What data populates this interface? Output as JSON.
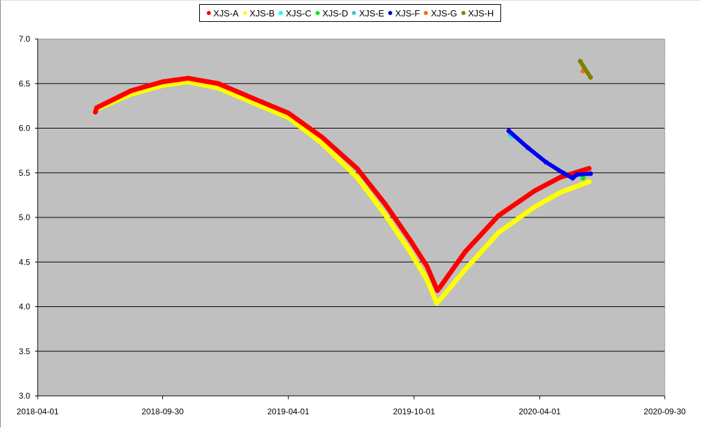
{
  "chart_data": {
    "type": "line",
    "title": "",
    "xlabel": "",
    "ylabel": "",
    "xlim": [
      "2018-04-01",
      "2020-09-30"
    ],
    "ylim": [
      3.0,
      7.0
    ],
    "x_ticks": [
      "2018-04-01",
      "2018-09-30",
      "2019-04-01",
      "2019-10-01",
      "2020-04-01",
      "2020-09-30"
    ],
    "y_ticks": [
      "3.0",
      "3.5",
      "4.0",
      "4.5",
      "5.0",
      "5.5",
      "6.0",
      "6.5",
      "7.0"
    ],
    "grid": "horizontal",
    "legend_position": "top",
    "plot_background": "#c0c0c0",
    "series": [
      {
        "name": "XJS-A",
        "color": "#ff0000",
        "points": [
          [
            "2018-06-24",
            6.18
          ],
          [
            "2018-06-26",
            6.23
          ],
          [
            "2018-08-15",
            6.42
          ],
          [
            "2018-09-30",
            6.52
          ],
          [
            "2018-11-06",
            6.56
          ],
          [
            "2018-12-20",
            6.5
          ],
          [
            "2019-02-10",
            6.33
          ],
          [
            "2019-04-01",
            6.17
          ],
          [
            "2019-05-20",
            5.9
          ],
          [
            "2019-07-10",
            5.55
          ],
          [
            "2019-08-20",
            5.15
          ],
          [
            "2019-09-25",
            4.75
          ],
          [
            "2019-10-20",
            4.45
          ],
          [
            "2019-11-04",
            4.18
          ],
          [
            "2019-11-08",
            4.22
          ],
          [
            "2019-12-15",
            4.62
          ],
          [
            "2020-02-01",
            5.02
          ],
          [
            "2020-03-25",
            5.3
          ],
          [
            "2020-05-01",
            5.45
          ],
          [
            "2020-06-12",
            5.55
          ]
        ]
      },
      {
        "name": "XJS-B",
        "color": "#ffff00",
        "points": [
          [
            "2018-06-25",
            6.21
          ],
          [
            "2018-08-15",
            6.38
          ],
          [
            "2018-09-30",
            6.48
          ],
          [
            "2018-11-06",
            6.52
          ],
          [
            "2018-12-20",
            6.45
          ],
          [
            "2019-02-10",
            6.28
          ],
          [
            "2019-04-01",
            6.12
          ],
          [
            "2019-05-20",
            5.83
          ],
          [
            "2019-07-10",
            5.45
          ],
          [
            "2019-08-20",
            5.03
          ],
          [
            "2019-09-25",
            4.62
          ],
          [
            "2019-10-20",
            4.3
          ],
          [
            "2019-11-03",
            4.04
          ],
          [
            "2019-11-08",
            4.08
          ],
          [
            "2019-12-15",
            4.42
          ],
          [
            "2020-02-01",
            4.83
          ],
          [
            "2020-03-25",
            5.12
          ],
          [
            "2020-05-01",
            5.28
          ],
          [
            "2020-06-12",
            5.4
          ]
        ]
      },
      {
        "name": "XJS-C",
        "color": "#00ffff",
        "points": [
          [
            "2020-02-20",
            5.9
          ]
        ]
      },
      {
        "name": "XJS-D",
        "color": "#00ee00",
        "points": [
          [
            "2020-06-03",
            5.44
          ]
        ]
      },
      {
        "name": "XJS-E",
        "color": "#40c8c8",
        "points": [
          [
            "2020-02-18",
            5.93
          ]
        ]
      },
      {
        "name": "XJS-F",
        "color": "#0000ee",
        "points": [
          [
            "2020-02-16",
            5.97
          ],
          [
            "2020-03-15",
            5.78
          ],
          [
            "2020-04-10",
            5.62
          ],
          [
            "2020-05-05",
            5.5
          ],
          [
            "2020-05-19",
            5.44
          ],
          [
            "2020-05-25",
            5.48
          ],
          [
            "2020-06-14",
            5.49
          ]
        ]
      },
      {
        "name": "XJS-G",
        "color": "#f07020",
        "points": [
          [
            "2020-06-03",
            6.64
          ]
        ]
      },
      {
        "name": "XJS-H",
        "color": "#808000",
        "points": [
          [
            "2020-05-30",
            6.75
          ],
          [
            "2020-06-14",
            6.57
          ]
        ]
      }
    ]
  }
}
